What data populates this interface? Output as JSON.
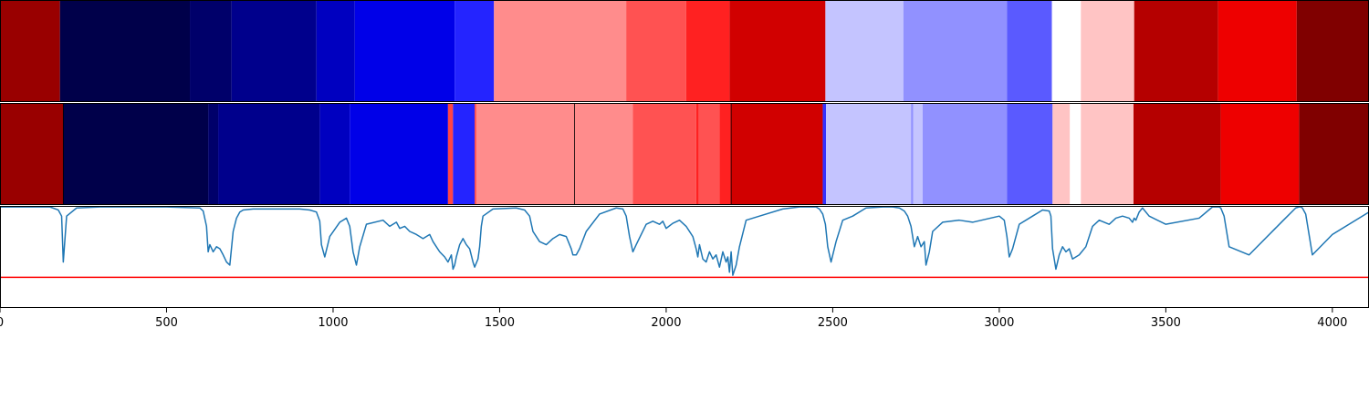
{
  "chart_data": {
    "type": "heatmap",
    "title": "",
    "xlabel": "",
    "ylabel": "",
    "xlim": [
      0,
      4110
    ],
    "grid": false,
    "x_ticks": [
      0,
      500,
      1000,
      1500,
      2000,
      2500,
      3000,
      3500,
      4000
    ],
    "x_tick_labels": [
      "0",
      "500",
      "1000",
      "1500",
      "2000",
      "2500",
      "3000",
      "3500",
      "4000"
    ],
    "colormap": "seismic",
    "strips": [
      {
        "segments": [
          {
            "start": 0,
            "end": 180,
            "color": "#990000"
          },
          {
            "start": 180,
            "end": 570,
            "color": "#00004a"
          },
          {
            "start": 570,
            "end": 695,
            "color": "#00006a"
          },
          {
            "start": 695,
            "end": 950,
            "color": "#00008c"
          },
          {
            "start": 950,
            "end": 1065,
            "color": "#0000c0"
          },
          {
            "start": 1065,
            "end": 1365,
            "color": "#0000e8"
          },
          {
            "start": 1365,
            "end": 1483,
            "color": "#2424ff"
          },
          {
            "start": 1483,
            "end": 1880,
            "color": "#ff8c8c"
          },
          {
            "start": 1880,
            "end": 2060,
            "color": "#ff5252"
          },
          {
            "start": 2060,
            "end": 2190,
            "color": "#ff2121"
          },
          {
            "start": 2190,
            "end": 2478,
            "color": "#d10000"
          },
          {
            "start": 2478,
            "end": 2712,
            "color": "#c4c4ff"
          },
          {
            "start": 2712,
            "end": 3023,
            "color": "#9191ff"
          },
          {
            "start": 3023,
            "end": 3158,
            "color": "#5a5aff"
          },
          {
            "start": 3158,
            "end": 3245,
            "color": "#ffffff"
          },
          {
            "start": 3245,
            "end": 3405,
            "color": "#ffc4c4"
          },
          {
            "start": 3405,
            "end": 3657,
            "color": "#b50000"
          },
          {
            "start": 3657,
            "end": 3893,
            "color": "#ee0000"
          },
          {
            "start": 3893,
            "end": 4110,
            "color": "#800000"
          }
        ]
      },
      {
        "segments": [
          {
            "start": 0,
            "end": 190,
            "color": "#990000"
          },
          {
            "start": 190,
            "end": 625,
            "color": "#00004a"
          },
          {
            "start": 625,
            "end": 655,
            "color": "#00006a"
          },
          {
            "start": 655,
            "end": 960,
            "color": "#00008c"
          },
          {
            "start": 960,
            "end": 1050,
            "color": "#0000c0"
          },
          {
            "start": 1050,
            "end": 1345,
            "color": "#0000e8"
          },
          {
            "start": 1345,
            "end": 1360,
            "color": "#ff4444"
          },
          {
            "start": 1360,
            "end": 1425,
            "color": "#2424ff"
          },
          {
            "start": 1425,
            "end": 1430,
            "color": "#ff4444"
          },
          {
            "start": 1430,
            "end": 1900,
            "color": "#ff8c8c"
          },
          {
            "start": 1900,
            "end": 2090,
            "color": "#ff5252"
          },
          {
            "start": 2090,
            "end": 2098,
            "color": "#ff2121"
          },
          {
            "start": 2098,
            "end": 2160,
            "color": "#ff5252"
          },
          {
            "start": 2160,
            "end": 2195,
            "color": "#ff2121"
          },
          {
            "start": 2195,
            "end": 2470,
            "color": "#d10000"
          },
          {
            "start": 2470,
            "end": 2480,
            "color": "#3333ff"
          },
          {
            "start": 2480,
            "end": 2735,
            "color": "#c4c4ff"
          },
          {
            "start": 2735,
            "end": 2742,
            "color": "#9191ff"
          },
          {
            "start": 2742,
            "end": 2770,
            "color": "#c4c4ff"
          },
          {
            "start": 2770,
            "end": 3023,
            "color": "#9191ff"
          },
          {
            "start": 3023,
            "end": 3160,
            "color": "#5a5aff"
          },
          {
            "start": 3160,
            "end": 3212,
            "color": "#ffc4c4"
          },
          {
            "start": 3212,
            "end": 3245,
            "color": "#ffffff"
          },
          {
            "start": 3245,
            "end": 3403,
            "color": "#ffc4c4"
          },
          {
            "start": 3403,
            "end": 3665,
            "color": "#b50000"
          },
          {
            "start": 3665,
            "end": 3900,
            "color": "#ee0000"
          },
          {
            "start": 3900,
            "end": 4110,
            "color": "#800000"
          }
        ],
        "boundaries": [
          190,
          1725,
          2195
        ]
      }
    ],
    "line": {
      "color": "#1f77b4",
      "ylim": [
        0,
        1
      ],
      "threshold": 0.3,
      "threshold_color": "#ff0000",
      "x": [
        0,
        150,
        175,
        185,
        190,
        200,
        230,
        300,
        400,
        500,
        600,
        610,
        620,
        625,
        630,
        640,
        650,
        660,
        670,
        680,
        690,
        700,
        710,
        720,
        730,
        760,
        800,
        900,
        930,
        950,
        960,
        965,
        975,
        990,
        1020,
        1040,
        1050,
        1060,
        1070,
        1080,
        1100,
        1150,
        1170,
        1190,
        1200,
        1215,
        1230,
        1250,
        1270,
        1290,
        1300,
        1310,
        1320,
        1335,
        1345,
        1355,
        1360,
        1365,
        1370,
        1380,
        1390,
        1400,
        1410,
        1420,
        1425,
        1435,
        1440,
        1445,
        1450,
        1480,
        1550,
        1575,
        1590,
        1600,
        1620,
        1640,
        1660,
        1680,
        1700,
        1715,
        1720,
        1730,
        1740,
        1760,
        1800,
        1850,
        1870,
        1880,
        1890,
        1900,
        1910,
        1940,
        1960,
        1980,
        1990,
        2000,
        2020,
        2040,
        2060,
        2080,
        2090,
        2095,
        2100,
        2110,
        2120,
        2130,
        2140,
        2150,
        2160,
        2170,
        2180,
        2185,
        2190,
        2195,
        2200,
        2210,
        2220,
        2240,
        2280,
        2350,
        2400,
        2430,
        2450,
        2460,
        2470,
        2478,
        2485,
        2495,
        2510,
        2530,
        2560,
        2600,
        2650,
        2680,
        2700,
        2715,
        2725,
        2735,
        2745,
        2755,
        2765,
        2775,
        2780,
        2790,
        2800,
        2830,
        2880,
        2920,
        2960,
        3000,
        3015,
        3023,
        3030,
        3040,
        3060,
        3100,
        3130,
        3150,
        3155,
        3160,
        3170,
        3180,
        3190,
        3200,
        3210,
        3220,
        3240,
        3260,
        3280,
        3300,
        3330,
        3350,
        3370,
        3390,
        3400,
        3405,
        3410,
        3420,
        3430,
        3450,
        3500,
        3600,
        3640,
        3650,
        3660,
        3665,
        3675,
        3690,
        3750,
        3850,
        3890,
        3900,
        3905,
        3910,
        3920,
        3940,
        4000,
        4110
      ],
      "y": [
        0.99,
        0.99,
        0.96,
        0.9,
        0.45,
        0.9,
        0.98,
        0.99,
        0.99,
        0.99,
        0.98,
        0.95,
        0.8,
        0.55,
        0.62,
        0.55,
        0.6,
        0.58,
        0.52,
        0.45,
        0.42,
        0.75,
        0.88,
        0.94,
        0.96,
        0.97,
        0.97,
        0.97,
        0.96,
        0.94,
        0.85,
        0.62,
        0.5,
        0.7,
        0.84,
        0.88,
        0.8,
        0.55,
        0.42,
        0.6,
        0.82,
        0.86,
        0.8,
        0.84,
        0.78,
        0.8,
        0.75,
        0.72,
        0.68,
        0.72,
        0.65,
        0.6,
        0.55,
        0.5,
        0.45,
        0.52,
        0.38,
        0.42,
        0.5,
        0.62,
        0.68,
        0.62,
        0.58,
        0.45,
        0.4,
        0.48,
        0.6,
        0.8,
        0.9,
        0.97,
        0.98,
        0.96,
        0.9,
        0.75,
        0.65,
        0.62,
        0.68,
        0.72,
        0.7,
        0.58,
        0.52,
        0.52,
        0.58,
        0.75,
        0.92,
        0.98,
        0.97,
        0.9,
        0.7,
        0.55,
        0.62,
        0.82,
        0.85,
        0.82,
        0.85,
        0.78,
        0.83,
        0.86,
        0.8,
        0.7,
        0.58,
        0.5,
        0.62,
        0.48,
        0.45,
        0.55,
        0.48,
        0.52,
        0.4,
        0.55,
        0.45,
        0.5,
        0.35,
        0.55,
        0.32,
        0.42,
        0.6,
        0.86,
        0.9,
        0.97,
        0.99,
        0.99,
        0.99,
        0.97,
        0.92,
        0.82,
        0.6,
        0.45,
        0.65,
        0.86,
        0.9,
        0.98,
        0.99,
        0.99,
        0.98,
        0.95,
        0.9,
        0.8,
        0.6,
        0.7,
        0.6,
        0.65,
        0.42,
        0.55,
        0.75,
        0.84,
        0.86,
        0.84,
        0.87,
        0.9,
        0.86,
        0.7,
        0.5,
        0.58,
        0.82,
        0.9,
        0.96,
        0.95,
        0.9,
        0.58,
        0.38,
        0.52,
        0.6,
        0.55,
        0.58,
        0.48,
        0.52,
        0.6,
        0.8,
        0.86,
        0.82,
        0.88,
        0.9,
        0.88,
        0.84,
        0.88,
        0.86,
        0.94,
        0.98,
        0.9,
        0.82,
        0.88,
        0.99,
        0.99,
        0.99,
        0.98,
        0.9,
        0.6,
        0.52,
        0.85,
        0.98,
        0.99,
        0.99,
        0.98,
        0.92,
        0.52,
        0.72,
        0.94,
        0.99,
        0.99,
        0.99
      ]
    }
  }
}
